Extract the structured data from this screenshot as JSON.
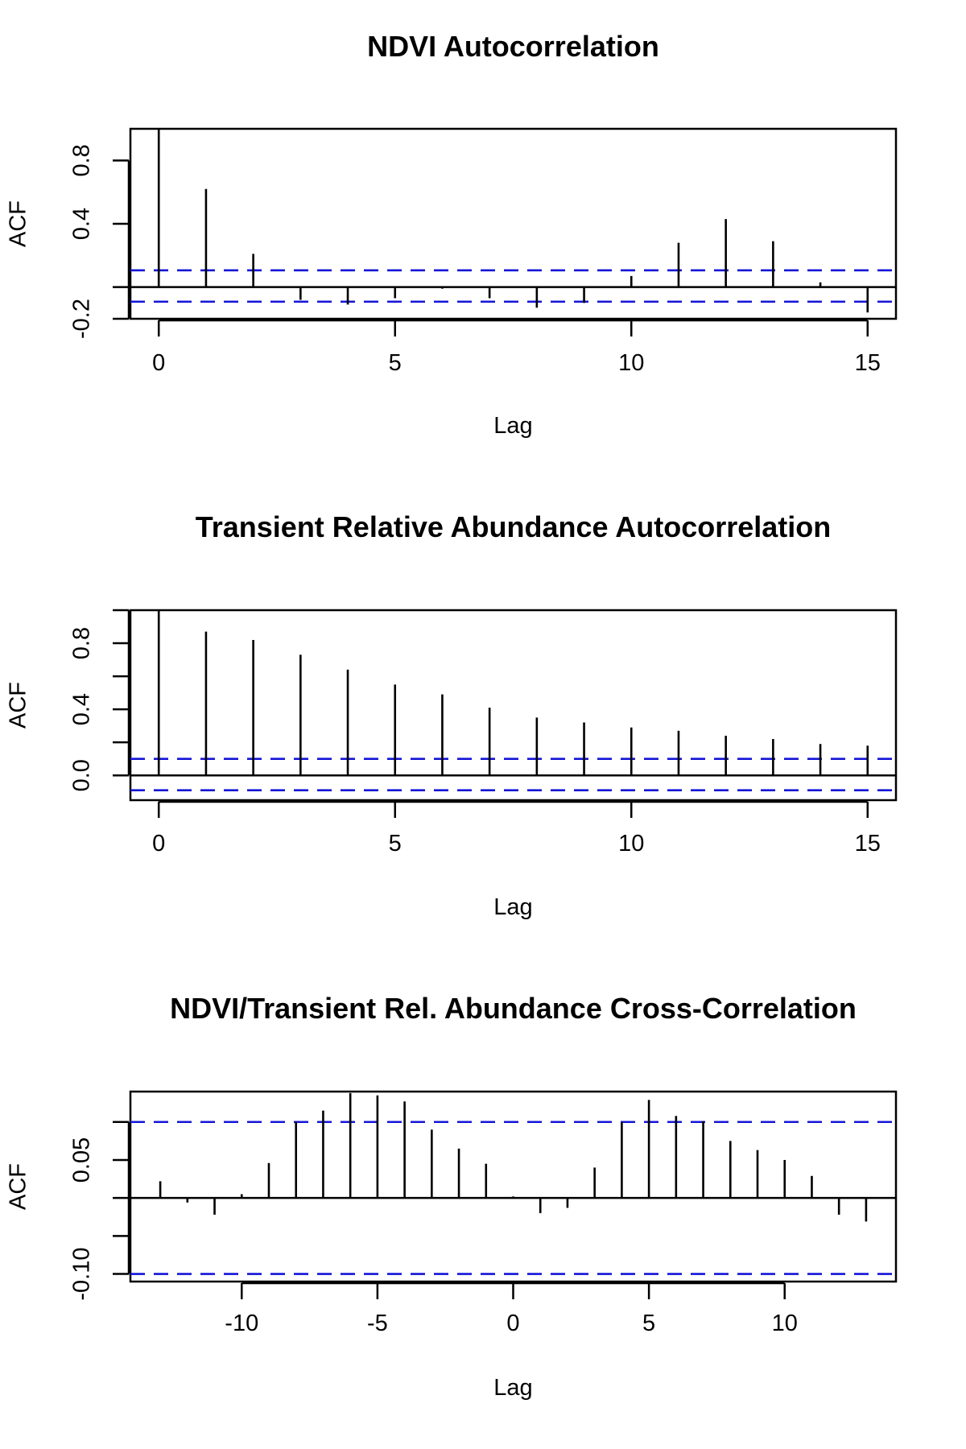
{
  "chart_data": [
    {
      "type": "bar",
      "subtype": "acf",
      "title": "NDVI Autocorrelation",
      "xlabel": "Lag",
      "ylabel": "ACF",
      "xlim": [
        -0.6,
        15.6
      ],
      "ylim": [
        -0.2,
        1.0
      ],
      "xticks": [
        0,
        5,
        10,
        15
      ],
      "yticks": [
        -0.2,
        0.0,
        0.4,
        0.8
      ],
      "ytick_labels": [
        "-0.2",
        "",
        "0.4",
        "0.8"
      ],
      "lags": [
        0,
        1,
        2,
        3,
        4,
        5,
        6,
        7,
        8,
        9,
        10,
        11,
        12,
        13,
        14,
        15
      ],
      "values": [
        1.0,
        0.62,
        0.21,
        -0.08,
        -0.11,
        -0.07,
        -0.01,
        -0.07,
        -0.13,
        -0.1,
        0.07,
        0.28,
        0.43,
        0.29,
        0.03,
        -0.16
      ],
      "ci": [
        0.106,
        -0.092
      ],
      "grid": false,
      "ci_color": "#1515d8"
    },
    {
      "type": "bar",
      "subtype": "acf",
      "title": "Transient Relative Abundance Autocorrelation",
      "xlabel": "Lag",
      "ylabel": "ACF",
      "xlim": [
        -0.6,
        15.6
      ],
      "ylim": [
        -0.15,
        1.0
      ],
      "xticks": [
        0,
        5,
        10,
        15
      ],
      "yticks": [
        0.0,
        0.2,
        0.4,
        0.6,
        0.8,
        1.0
      ],
      "ytick_labels": [
        "0.0",
        "",
        "0.4",
        "",
        "0.8",
        ""
      ],
      "lags": [
        0,
        1,
        2,
        3,
        4,
        5,
        6,
        7,
        8,
        9,
        10,
        11,
        12,
        13,
        14,
        15
      ],
      "values": [
        1.0,
        0.87,
        0.82,
        0.73,
        0.64,
        0.55,
        0.49,
        0.41,
        0.35,
        0.32,
        0.29,
        0.27,
        0.24,
        0.22,
        0.19,
        0.18
      ],
      "ci": [
        0.1,
        -0.09
      ],
      "grid": false,
      "ci_color": "#1515d8"
    },
    {
      "type": "bar",
      "subtype": "ccf",
      "title": "NDVI/Transient Rel. Abundance Cross-Correlation",
      "xlabel": "Lag",
      "ylabel": "ACF",
      "xlim": [
        -14.1,
        14.1
      ],
      "ylim": [
        -0.11,
        0.14
      ],
      "xticks": [
        -10,
        -5,
        0,
        5,
        10
      ],
      "yticks": [
        -0.1,
        -0.05,
        0.0,
        0.05,
        0.1
      ],
      "ytick_labels": [
        "-0.10",
        "",
        "",
        "0.05",
        ""
      ],
      "lags": [
        -13,
        -12,
        -11,
        -10,
        -9,
        -8,
        -7,
        -6,
        -5,
        -4,
        -3,
        -2,
        -1,
        0,
        1,
        2,
        3,
        4,
        5,
        6,
        7,
        8,
        9,
        10,
        11,
        12,
        13
      ],
      "values": [
        0.022,
        -0.006,
        -0.022,
        0.005,
        0.046,
        0.1,
        0.115,
        0.138,
        0.135,
        0.127,
        0.09,
        0.065,
        0.045,
        0.002,
        -0.02,
        -0.013,
        0.04,
        0.1,
        0.129,
        0.108,
        0.101,
        0.075,
        0.063,
        0.05,
        0.029,
        -0.022,
        -0.031
      ],
      "ci": [
        0.1,
        -0.1
      ],
      "grid": false,
      "ci_color": "#1515d8"
    }
  ]
}
